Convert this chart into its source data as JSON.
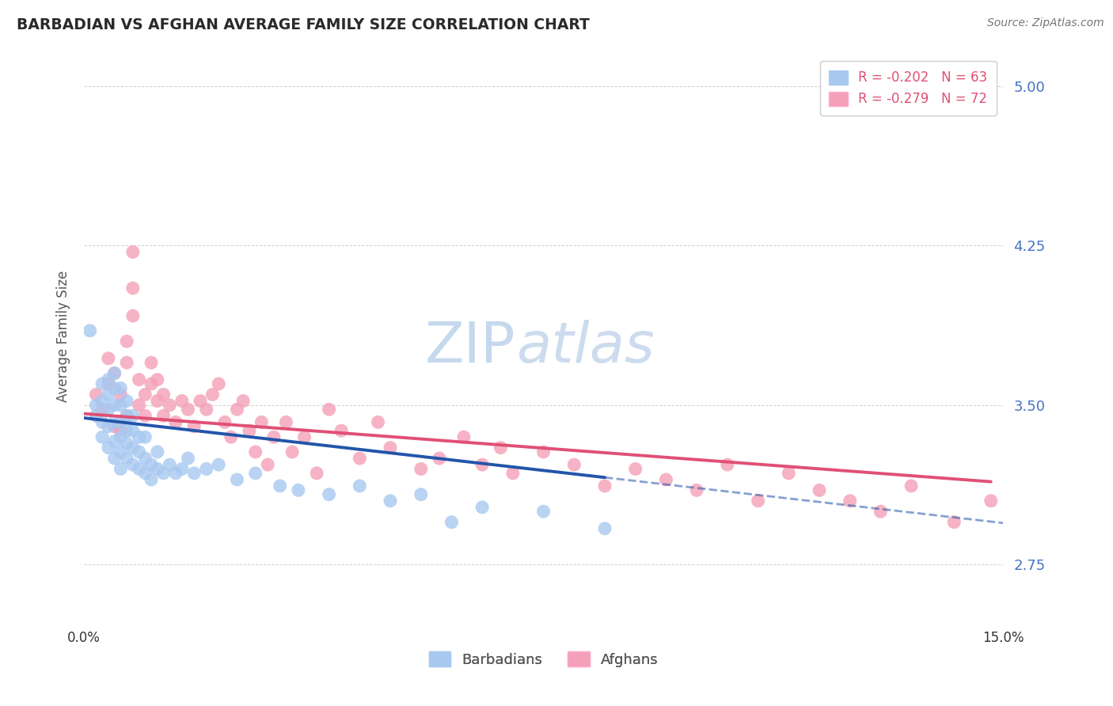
{
  "title": "BARBADIAN VS AFGHAN AVERAGE FAMILY SIZE CORRELATION CHART",
  "source": "Source: ZipAtlas.com",
  "ylabel": "Average Family Size",
  "x_min": 0.0,
  "x_max": 0.15,
  "y_min": 2.5,
  "y_max": 5.15,
  "y_ticks": [
    2.75,
    3.5,
    4.25,
    5.0
  ],
  "barbadian_R": -0.202,
  "barbadian_N": 63,
  "afghan_R": -0.279,
  "afghan_N": 72,
  "blue_color": "#A8C8F0",
  "pink_color": "#F4A0B8",
  "blue_line_color": "#2255AA",
  "pink_line_color": "#E05075",
  "grid_color": "#BBBBBB",
  "right_tick_color": "#4472C4",
  "watermark_color": "#D0DFF0",
  "background": "#FFFFFF",
  "barbadian_x": [
    0.001,
    0.002,
    0.002,
    0.003,
    0.003,
    0.003,
    0.003,
    0.004,
    0.004,
    0.004,
    0.004,
    0.004,
    0.005,
    0.005,
    0.005,
    0.005,
    0.005,
    0.005,
    0.006,
    0.006,
    0.006,
    0.006,
    0.006,
    0.006,
    0.007,
    0.007,
    0.007,
    0.007,
    0.007,
    0.008,
    0.008,
    0.008,
    0.008,
    0.009,
    0.009,
    0.009,
    0.01,
    0.01,
    0.01,
    0.011,
    0.011,
    0.012,
    0.012,
    0.013,
    0.014,
    0.015,
    0.016,
    0.017,
    0.018,
    0.02,
    0.022,
    0.025,
    0.028,
    0.032,
    0.035,
    0.04,
    0.045,
    0.05,
    0.055,
    0.06,
    0.065,
    0.075,
    0.085
  ],
  "barbadian_y": [
    3.85,
    3.5,
    3.45,
    3.35,
    3.42,
    3.52,
    3.6,
    3.3,
    3.4,
    3.48,
    3.55,
    3.62,
    3.25,
    3.33,
    3.42,
    3.5,
    3.58,
    3.65,
    3.2,
    3.28,
    3.35,
    3.42,
    3.5,
    3.58,
    3.25,
    3.32,
    3.38,
    3.45,
    3.52,
    3.22,
    3.3,
    3.38,
    3.45,
    3.2,
    3.28,
    3.35,
    3.18,
    3.25,
    3.35,
    3.15,
    3.22,
    3.2,
    3.28,
    3.18,
    3.22,
    3.18,
    3.2,
    3.25,
    3.18,
    3.2,
    3.22,
    3.15,
    3.18,
    3.12,
    3.1,
    3.08,
    3.12,
    3.05,
    3.08,
    2.95,
    3.02,
    3.0,
    2.92
  ],
  "afghan_x": [
    0.002,
    0.003,
    0.004,
    0.004,
    0.005,
    0.005,
    0.006,
    0.006,
    0.007,
    0.007,
    0.007,
    0.008,
    0.008,
    0.008,
    0.009,
    0.009,
    0.01,
    0.01,
    0.011,
    0.011,
    0.012,
    0.012,
    0.013,
    0.013,
    0.014,
    0.015,
    0.016,
    0.017,
    0.018,
    0.019,
    0.02,
    0.021,
    0.022,
    0.023,
    0.024,
    0.025,
    0.026,
    0.027,
    0.028,
    0.029,
    0.03,
    0.031,
    0.033,
    0.034,
    0.036,
    0.038,
    0.04,
    0.042,
    0.045,
    0.048,
    0.05,
    0.055,
    0.058,
    0.062,
    0.065,
    0.068,
    0.07,
    0.075,
    0.08,
    0.085,
    0.09,
    0.095,
    0.1,
    0.105,
    0.11,
    0.115,
    0.12,
    0.125,
    0.13,
    0.135,
    0.142,
    0.148
  ],
  "afghan_y": [
    3.55,
    3.48,
    3.6,
    3.72,
    3.4,
    3.65,
    3.38,
    3.55,
    3.45,
    3.7,
    3.8,
    3.92,
    4.05,
    4.22,
    3.5,
    3.62,
    3.45,
    3.55,
    3.6,
    3.7,
    3.52,
    3.62,
    3.45,
    3.55,
    3.5,
    3.42,
    3.52,
    3.48,
    3.4,
    3.52,
    3.48,
    3.55,
    3.6,
    3.42,
    3.35,
    3.48,
    3.52,
    3.38,
    3.28,
    3.42,
    3.22,
    3.35,
    3.42,
    3.28,
    3.35,
    3.18,
    3.48,
    3.38,
    3.25,
    3.42,
    3.3,
    3.2,
    3.25,
    3.35,
    3.22,
    3.3,
    3.18,
    3.28,
    3.22,
    3.12,
    3.2,
    3.15,
    3.1,
    3.22,
    3.05,
    3.18,
    3.1,
    3.05,
    3.0,
    3.12,
    2.95,
    3.05
  ],
  "blue_line_x0": 0.0,
  "blue_line_x1": 0.085,
  "blue_line_y0": 3.44,
  "blue_line_y1": 3.16,
  "pink_line_x0": 0.0,
  "pink_line_x1": 0.148,
  "pink_line_y0": 3.46,
  "pink_line_y1": 3.14
}
